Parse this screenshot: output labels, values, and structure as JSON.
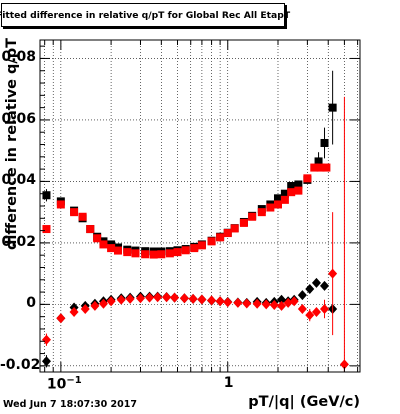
{
  "title": "Fitted difference in relative q/pT for Global Rec All EtapT",
  "footer_timestamp": "Wed Jun  7 18:07:30 2017",
  "colors": {
    "series_black": "#000000",
    "series_red": "#ff0000",
    "grid": "#000000",
    "frame": "#000000"
  },
  "chart_data": {
    "type": "scatter",
    "title": "Fitted difference in relative q/pT for Global Rec All EtapT",
    "xlabel": "pT/|q| (GeV/c)",
    "ylabel": "difference in relative q/pT",
    "x_scale": "log",
    "xlim": [
      0.075,
      6.2
    ],
    "ylim": [
      -0.022,
      0.086
    ],
    "grid": true,
    "x_tick_labels": [
      {
        "value": 0.1,
        "base": "10",
        "exp": "−1"
      },
      {
        "value": 1,
        "base": "1",
        "exp": ""
      }
    ],
    "y_tick_labels": [
      {
        "value": -0.02,
        "text": "-0.02"
      },
      {
        "value": 0,
        "text": "0"
      },
      {
        "value": 0.02,
        "text": "0.02"
      },
      {
        "value": 0.04,
        "text": "0.04"
      },
      {
        "value": 0.06,
        "text": "0.06"
      },
      {
        "value": 0.08,
        "text": "0.08"
      }
    ],
    "series": [
      {
        "marker": "square",
        "color": "#000000",
        "points": [
          {
            "x": 0.082,
            "y": 0.0355,
            "ey": 0.002
          },
          {
            "x": 0.1,
            "y": 0.0335
          },
          {
            "x": 0.12,
            "y": 0.0305
          },
          {
            "x": 0.135,
            "y": 0.028
          },
          {
            "x": 0.15,
            "y": 0.0245
          },
          {
            "x": 0.165,
            "y": 0.022
          },
          {
            "x": 0.18,
            "y": 0.0205
          },
          {
            "x": 0.2,
            "y": 0.0195
          },
          {
            "x": 0.22,
            "y": 0.0185
          },
          {
            "x": 0.25,
            "y": 0.0178
          },
          {
            "x": 0.28,
            "y": 0.0175
          },
          {
            "x": 0.32,
            "y": 0.0173
          },
          {
            "x": 0.36,
            "y": 0.0172
          },
          {
            "x": 0.4,
            "y": 0.0172
          },
          {
            "x": 0.45,
            "y": 0.0173
          },
          {
            "x": 0.5,
            "y": 0.0176
          },
          {
            "x": 0.56,
            "y": 0.018
          },
          {
            "x": 0.63,
            "y": 0.0187
          },
          {
            "x": 0.7,
            "y": 0.0195
          },
          {
            "x": 0.8,
            "y": 0.0207
          },
          {
            "x": 0.9,
            "y": 0.022
          },
          {
            "x": 1.0,
            "y": 0.0233
          },
          {
            "x": 1.1,
            "y": 0.0248
          },
          {
            "x": 1.25,
            "y": 0.0268
          },
          {
            "x": 1.4,
            "y": 0.0288
          },
          {
            "x": 1.6,
            "y": 0.031
          },
          {
            "x": 1.8,
            "y": 0.0325
          },
          {
            "x": 2.0,
            "y": 0.0345
          },
          {
            "x": 2.2,
            "y": 0.036
          },
          {
            "x": 2.4,
            "y": 0.0385
          },
          {
            "x": 2.65,
            "y": 0.039
          },
          {
            "x": 3.0,
            "y": 0.0405
          },
          {
            "x": 3.5,
            "y": 0.0465,
            "ey": 0.003
          },
          {
            "x": 3.8,
            "y": 0.0525,
            "ey": 0.005
          },
          {
            "x": 4.25,
            "y": 0.064,
            "ey": 0.012
          }
        ]
      },
      {
        "marker": "square",
        "color": "#ff0000",
        "points": [
          {
            "x": 0.082,
            "y": 0.0245
          },
          {
            "x": 0.1,
            "y": 0.0325
          },
          {
            "x": 0.12,
            "y": 0.03
          },
          {
            "x": 0.135,
            "y": 0.0285
          },
          {
            "x": 0.15,
            "y": 0.0245
          },
          {
            "x": 0.165,
            "y": 0.0215
          },
          {
            "x": 0.18,
            "y": 0.0195
          },
          {
            "x": 0.2,
            "y": 0.0183
          },
          {
            "x": 0.22,
            "y": 0.0175
          },
          {
            "x": 0.25,
            "y": 0.017
          },
          {
            "x": 0.28,
            "y": 0.0166
          },
          {
            "x": 0.32,
            "y": 0.0163
          },
          {
            "x": 0.36,
            "y": 0.0162
          },
          {
            "x": 0.4,
            "y": 0.0163
          },
          {
            "x": 0.45,
            "y": 0.0166
          },
          {
            "x": 0.5,
            "y": 0.017
          },
          {
            "x": 0.56,
            "y": 0.0176
          },
          {
            "x": 0.63,
            "y": 0.0183
          },
          {
            "x": 0.7,
            "y": 0.0192
          },
          {
            "x": 0.8,
            "y": 0.0205
          },
          {
            "x": 0.9,
            "y": 0.0218
          },
          {
            "x": 1.0,
            "y": 0.0232
          },
          {
            "x": 1.1,
            "y": 0.0247
          },
          {
            "x": 1.25,
            "y": 0.0265
          },
          {
            "x": 1.4,
            "y": 0.0285
          },
          {
            "x": 1.6,
            "y": 0.03
          },
          {
            "x": 1.8,
            "y": 0.0315
          },
          {
            "x": 2.0,
            "y": 0.0325
          },
          {
            "x": 2.2,
            "y": 0.034
          },
          {
            "x": 2.4,
            "y": 0.0365
          },
          {
            "x": 2.65,
            "y": 0.037
          },
          {
            "x": 3.0,
            "y": 0.041
          },
          {
            "x": 3.3,
            "y": 0.0445
          },
          {
            "x": 3.6,
            "y": 0.0445
          },
          {
            "x": 3.9,
            "y": 0.0445
          }
        ]
      },
      {
        "marker": "diamond",
        "color": "#000000",
        "points": [
          {
            "x": 0.082,
            "y": -0.0185,
            "ey": 0.002
          },
          {
            "x": 0.1,
            "y": -0.0045
          },
          {
            "x": 0.12,
            "y": -0.001
          },
          {
            "x": 0.14,
            "y": -0.0005
          },
          {
            "x": 0.16,
            "y": 0.0002
          },
          {
            "x": 0.18,
            "y": 0.001
          },
          {
            "x": 0.2,
            "y": 0.0015
          },
          {
            "x": 0.23,
            "y": 0.002
          },
          {
            "x": 0.26,
            "y": 0.0022
          },
          {
            "x": 0.3,
            "y": 0.0025
          },
          {
            "x": 0.34,
            "y": 0.0025
          },
          {
            "x": 0.38,
            "y": 0.0025
          },
          {
            "x": 0.43,
            "y": 0.0024
          },
          {
            "x": 0.48,
            "y": 0.0022
          },
          {
            "x": 0.55,
            "y": 0.002
          },
          {
            "x": 0.62,
            "y": 0.0018
          },
          {
            "x": 0.7,
            "y": 0.0016
          },
          {
            "x": 0.8,
            "y": 0.0012
          },
          {
            "x": 0.9,
            "y": 0.001
          },
          {
            "x": 1.0,
            "y": 0.0008
          },
          {
            "x": 1.15,
            "y": 0.0006
          },
          {
            "x": 1.3,
            "y": 0.0005
          },
          {
            "x": 1.5,
            "y": 0.0008
          },
          {
            "x": 1.7,
            "y": 0.0005
          },
          {
            "x": 1.9,
            "y": 0.0008
          },
          {
            "x": 2.1,
            "y": 0.0015
          },
          {
            "x": 2.3,
            "y": 0.001
          },
          {
            "x": 2.5,
            "y": 0.0015
          },
          {
            "x": 2.8,
            "y": 0.003
          },
          {
            "x": 3.1,
            "y": 0.005
          },
          {
            "x": 3.4,
            "y": 0.007
          },
          {
            "x": 3.8,
            "y": 0.006
          },
          {
            "x": 4.25,
            "y": -0.0015
          }
        ]
      },
      {
        "marker": "diamond",
        "color": "#ff0000",
        "points": [
          {
            "x": 0.082,
            "y": -0.0115,
            "ey": 0.002
          },
          {
            "x": 0.1,
            "y": -0.0045
          },
          {
            "x": 0.12,
            "y": -0.0025
          },
          {
            "x": 0.14,
            "y": -0.0015
          },
          {
            "x": 0.16,
            "y": -0.0005
          },
          {
            "x": 0.18,
            "y": 0.0002
          },
          {
            "x": 0.2,
            "y": 0.001
          },
          {
            "x": 0.23,
            "y": 0.0015
          },
          {
            "x": 0.26,
            "y": 0.0018
          },
          {
            "x": 0.3,
            "y": 0.002
          },
          {
            "x": 0.34,
            "y": 0.0022
          },
          {
            "x": 0.38,
            "y": 0.0023
          },
          {
            "x": 0.43,
            "y": 0.0023
          },
          {
            "x": 0.48,
            "y": 0.0022
          },
          {
            "x": 0.55,
            "y": 0.002
          },
          {
            "x": 0.62,
            "y": 0.0018
          },
          {
            "x": 0.7,
            "y": 0.0016
          },
          {
            "x": 0.8,
            "y": 0.0013
          },
          {
            "x": 0.9,
            "y": 0.001
          },
          {
            "x": 1.0,
            "y": 0.0007
          },
          {
            "x": 1.15,
            "y": 0.0005
          },
          {
            "x": 1.3,
            "y": 0.0003
          },
          {
            "x": 1.5,
            "y": 0.0002
          },
          {
            "x": 1.7,
            "y": 0.0
          },
          {
            "x": 1.9,
            "y": -0.0002
          },
          {
            "x": 2.1,
            "y": -0.0005
          },
          {
            "x": 2.3,
            "y": 0.0005
          },
          {
            "x": 2.5,
            "y": 0.001
          },
          {
            "x": 2.8,
            "y": -0.0015
          },
          {
            "x": 3.1,
            "y": -0.0035,
            "ey": 0.002
          },
          {
            "x": 3.4,
            "y": -0.0025
          },
          {
            "x": 3.8,
            "y": -0.0015,
            "ey": 0.003
          },
          {
            "x": 4.25,
            "y": 0.01,
            "ey": 0.02
          },
          {
            "x": 5.0,
            "y": -0.0195,
            "ey": 0.087
          }
        ]
      }
    ]
  }
}
